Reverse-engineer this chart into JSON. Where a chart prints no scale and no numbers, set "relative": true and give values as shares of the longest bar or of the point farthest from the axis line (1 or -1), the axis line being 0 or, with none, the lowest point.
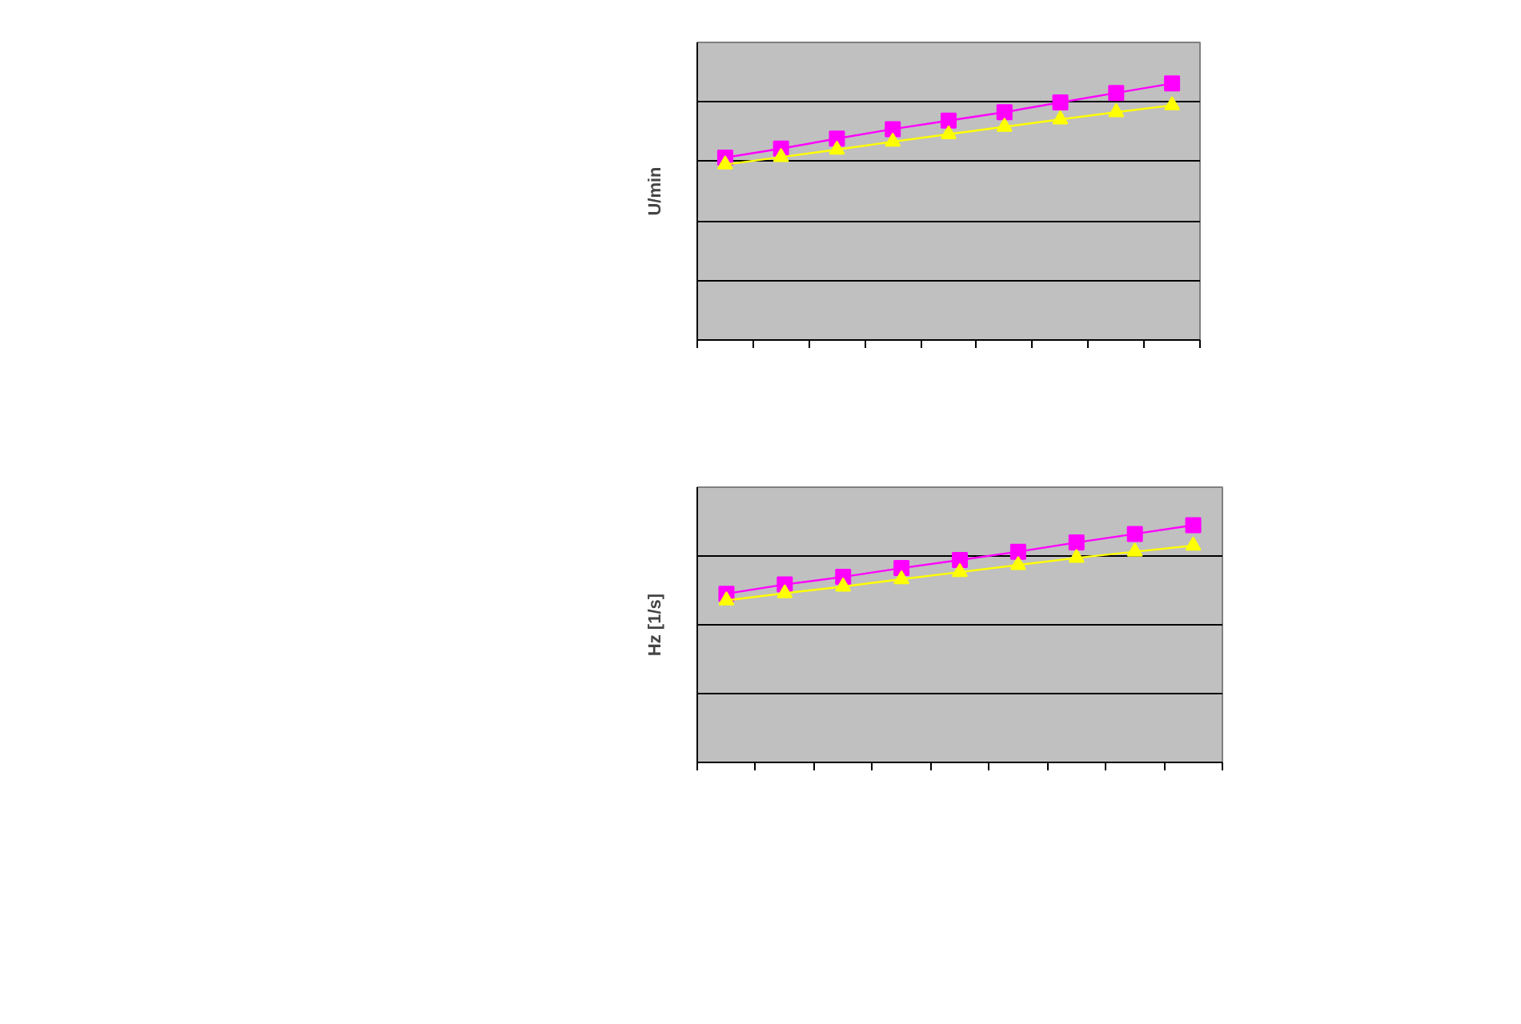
{
  "chart_data": [
    {
      "type": "line",
      "ylabel": "U/min",
      "relative": true,
      "categories": [
        null,
        null,
        null,
        null,
        null,
        null,
        null,
        null,
        null
      ],
      "grid": "y",
      "series": [
        {
          "color": "#ff00ff",
          "marker": "square",
          "values": [
            0.711,
            0.746,
            0.785,
            0.822,
            0.855,
            0.888,
            0.926,
            0.963,
            1
          ]
        },
        {
          "color": "#ffff00",
          "marker": "triangle",
          "values": [
            0.684,
            0.713,
            0.742,
            0.773,
            0.802,
            0.831,
            0.86,
            0.888,
            0.915
          ]
        }
      ]
    },
    {
      "type": "line",
      "ylabel": "Hz [1/s]",
      "relative": true,
      "categories": [
        null,
        null,
        null,
        null,
        null,
        null,
        null,
        null,
        null
      ],
      "grid": "y",
      "series": [
        {
          "color": "#ff00ff",
          "marker": "square",
          "values": [
            0.711,
            0.75,
            0.782,
            0.819,
            0.853,
            0.888,
            0.927,
            0.963,
            1
          ]
        },
        {
          "color": "#ffff00",
          "marker": "triangle",
          "values": [
            0.683,
            0.713,
            0.741,
            0.772,
            0.802,
            0.832,
            0.862,
            0.888,
            0.914
          ]
        }
      ]
    }
  ]
}
